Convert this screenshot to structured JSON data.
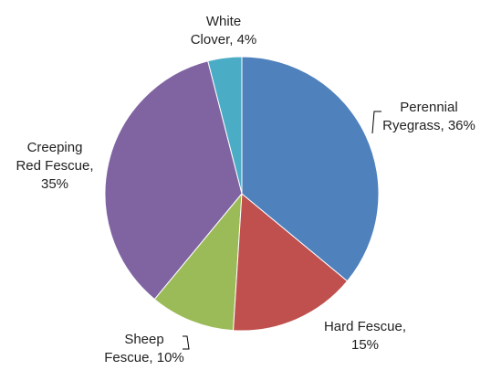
{
  "chart_data": {
    "type": "pie",
    "categories": [
      "Perennial Ryegrass",
      "Hard Fescue",
      "Sheep Fescue",
      "Creeping Red Fescue",
      "White Clover"
    ],
    "values": [
      36,
      15,
      10,
      35,
      4
    ],
    "value_labels": [
      "Perennial Ryegrass, 36%",
      "Hard Fescue, 15%",
      "Sheep Fescue, 10%",
      "Creeping Red Fescue, 35%",
      "White Clover, 4%"
    ],
    "colors": [
      "#4f81bd",
      "#c0504d",
      "#9bbb59",
      "#8064a2",
      "#4bacc6"
    ]
  }
}
